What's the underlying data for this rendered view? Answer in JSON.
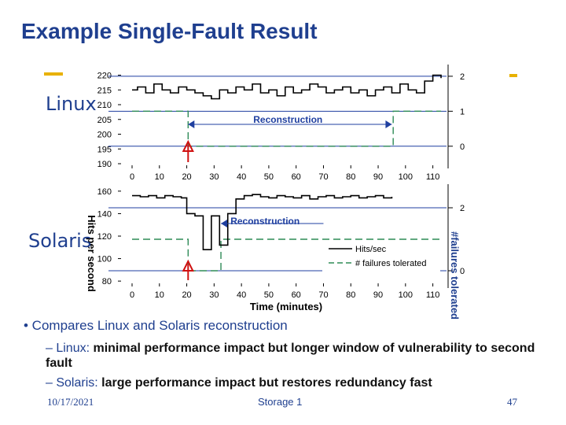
{
  "slide": {
    "title": "Example Single-Fault Result",
    "linux_label": "Linux",
    "solaris_label": "Solaris",
    "bullet": "• Compares Linux and Solaris reconstruction",
    "sub1_prefix": "– Linux: ",
    "sub1_bold": "minimal performance impact but longer window of vulnerability to second fault",
    "sub2_prefix": "– Solaris: ",
    "sub2_bold": "large performance impact but restores redundancy fast",
    "footer_date": "10/17/2021",
    "footer_center": "Storage 1",
    "footer_page": "47"
  },
  "chart_data": [
    {
      "type": "line",
      "panel": "Linux",
      "x_ticks": [
        0,
        10,
        20,
        30,
        40,
        50,
        60,
        70,
        80,
        90,
        100,
        110
      ],
      "y_ticks": [
        190,
        195,
        200,
        205,
        210,
        215,
        220
      ],
      "y2_ticks": [
        0,
        1,
        2
      ],
      "xlim": [
        0,
        115
      ],
      "ylim": [
        190,
        222
      ],
      "y2lim": [
        -0.5,
        2.2
      ],
      "series": [
        {
          "name": "Hits/sec",
          "axis": "left",
          "x": [
            0,
            2,
            5,
            8,
            11,
            14,
            17,
            20,
            23,
            26,
            29,
            32,
            35,
            38,
            41,
            44,
            47,
            50,
            53,
            56,
            59,
            62,
            65,
            68,
            71,
            74,
            77,
            80,
            83,
            86,
            89,
            92,
            95,
            98,
            101,
            104,
            107,
            110,
            113
          ],
          "y": [
            215,
            216,
            214,
            217,
            215,
            214,
            216,
            215,
            214,
            213,
            212,
            215,
            214,
            216,
            215,
            217,
            214,
            215,
            213,
            216,
            214,
            215,
            217,
            216,
            214,
            215,
            216,
            214,
            215,
            213,
            215,
            216,
            214,
            217,
            215,
            214,
            218,
            220,
            219
          ]
        },
        {
          "name": "# failures tolerated",
          "axis": "right",
          "x": [
            0,
            20,
            20.5,
            95,
            95.5,
            113
          ],
          "y": [
            1,
            1,
            0,
            0,
            1,
            1
          ]
        }
      ],
      "annotations": [
        "Reconstruction"
      ]
    },
    {
      "type": "line",
      "panel": "Solaris",
      "x_ticks": [
        0,
        10,
        20,
        30,
        40,
        50,
        60,
        70,
        80,
        90,
        100,
        110
      ],
      "y_ticks": [
        80,
        100,
        120,
        140,
        160
      ],
      "y2_ticks": [
        0,
        2
      ],
      "xlim": [
        0,
        115
      ],
      "ylim": [
        78,
        162
      ],
      "y2lim": [
        -0.4,
        2.6
      ],
      "series": [
        {
          "name": "Hits/sec",
          "axis": "left",
          "x": [
            0,
            3,
            6,
            9,
            12,
            15,
            18,
            20,
            23,
            26,
            29,
            32,
            35,
            38,
            41,
            44,
            47,
            50,
            53,
            56,
            59,
            62,
            65,
            68,
            71,
            74,
            77,
            80,
            83,
            86,
            89,
            92,
            95
          ],
          "y": [
            156,
            155,
            156,
            154,
            156,
            155,
            154,
            140,
            138,
            108,
            138,
            112,
            140,
            153,
            156,
            157,
            155,
            154,
            156,
            155,
            154,
            156,
            153,
            155,
            156,
            154,
            155,
            156,
            154,
            155,
            156,
            154,
            155
          ]
        },
        {
          "name": "# failures tolerated",
          "axis": "right",
          "x": [
            0,
            20,
            20.5,
            32,
            32.5,
            113
          ],
          "y": [
            1,
            1,
            0,
            0,
            1,
            1
          ]
        }
      ],
      "annotations": [
        "Reconstruction"
      ],
      "xlabel": "Time (minutes)",
      "ylabel": "Hits per second",
      "y2label": "#failures tolerated",
      "legend": [
        "Hits/sec",
        "# failures tolerated"
      ],
      "legend_position": "bottom-right"
    }
  ]
}
